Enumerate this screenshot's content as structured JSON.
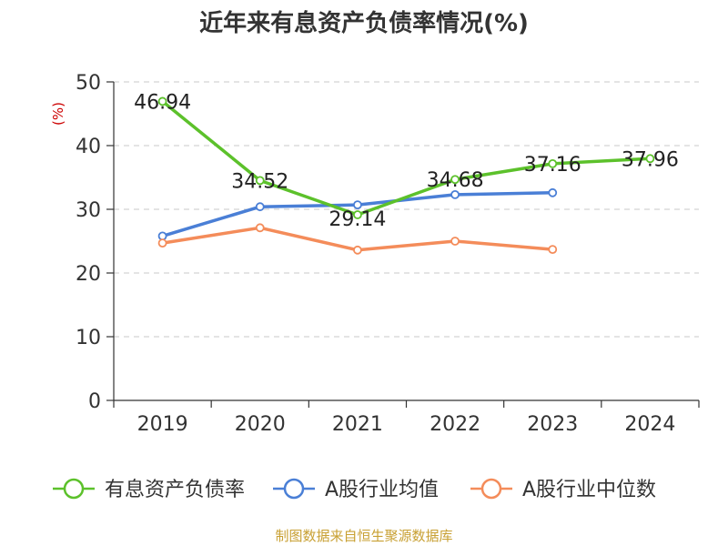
{
  "chart_data": {
    "type": "line",
    "title": "近年来有息资产负债率情况(%)",
    "ylabel": "(%)",
    "categories": [
      "2019",
      "2020",
      "2021",
      "2022",
      "2023",
      "2024"
    ],
    "ylim": [
      0,
      50
    ],
    "yticks": [
      0,
      10,
      20,
      30,
      40,
      50
    ],
    "grid": true,
    "legend_position": "bottom",
    "series": [
      {
        "name": "有息资产负债率",
        "color": "#5cc12b",
        "values": [
          46.94,
          34.52,
          29.14,
          34.68,
          37.16,
          37.96
        ],
        "labels": [
          "46.94",
          "34.52",
          "29.14",
          "34.68",
          "37.16",
          "37.96"
        ]
      },
      {
        "name": "A股行业均值",
        "color": "#4a7fd6",
        "values": [
          25.8,
          30.4,
          30.7,
          32.3,
          32.6,
          null
        ]
      },
      {
        "name": "A股行业中位数",
        "color": "#f48c5a",
        "values": [
          24.7,
          27.1,
          23.6,
          25.0,
          23.7,
          null
        ]
      }
    ],
    "source": "制图数据来自恒生聚源数据库"
  }
}
